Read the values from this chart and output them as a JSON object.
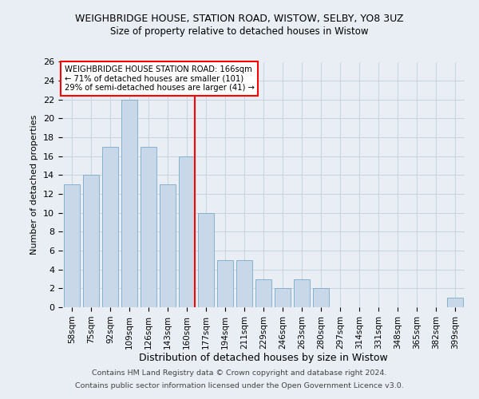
{
  "title": "WEIGHBRIDGE HOUSE, STATION ROAD, WISTOW, SELBY, YO8 3UZ",
  "subtitle": "Size of property relative to detached houses in Wistow",
  "xlabel": "Distribution of detached houses by size in Wistow",
  "ylabel": "Number of detached properties",
  "categories": [
    "58sqm",
    "75sqm",
    "92sqm",
    "109sqm",
    "126sqm",
    "143sqm",
    "160sqm",
    "177sqm",
    "194sqm",
    "211sqm",
    "229sqm",
    "246sqm",
    "263sqm",
    "280sqm",
    "297sqm",
    "314sqm",
    "331sqm",
    "348sqm",
    "365sqm",
    "382sqm",
    "399sqm"
  ],
  "values": [
    13,
    14,
    17,
    22,
    17,
    13,
    16,
    10,
    5,
    5,
    3,
    2,
    3,
    2,
    0,
    0,
    0,
    0,
    0,
    0,
    1
  ],
  "bar_color": "#c8d8e8",
  "bar_edge_color": "#7aaac8",
  "vline_x_index": 6,
  "vline_color": "red",
  "annotation_title": "WEIGHBRIDGE HOUSE STATION ROAD: 166sqm",
  "annotation_line1": "← 71% of detached houses are smaller (101)",
  "annotation_line2": "29% of semi-detached houses are larger (41) →",
  "annotation_box_facecolor": "#ffffff",
  "annotation_box_edge": "red",
  "ylim": [
    0,
    26
  ],
  "yticks": [
    0,
    2,
    4,
    6,
    8,
    10,
    12,
    14,
    16,
    18,
    20,
    22,
    24,
    26
  ],
  "footnote1": "Contains HM Land Registry data © Crown copyright and database right 2024.",
  "footnote2": "Contains public sector information licensed under the Open Government Licence v3.0.",
  "bg_color": "#e8eef4",
  "grid_color": "#c8d4de"
}
